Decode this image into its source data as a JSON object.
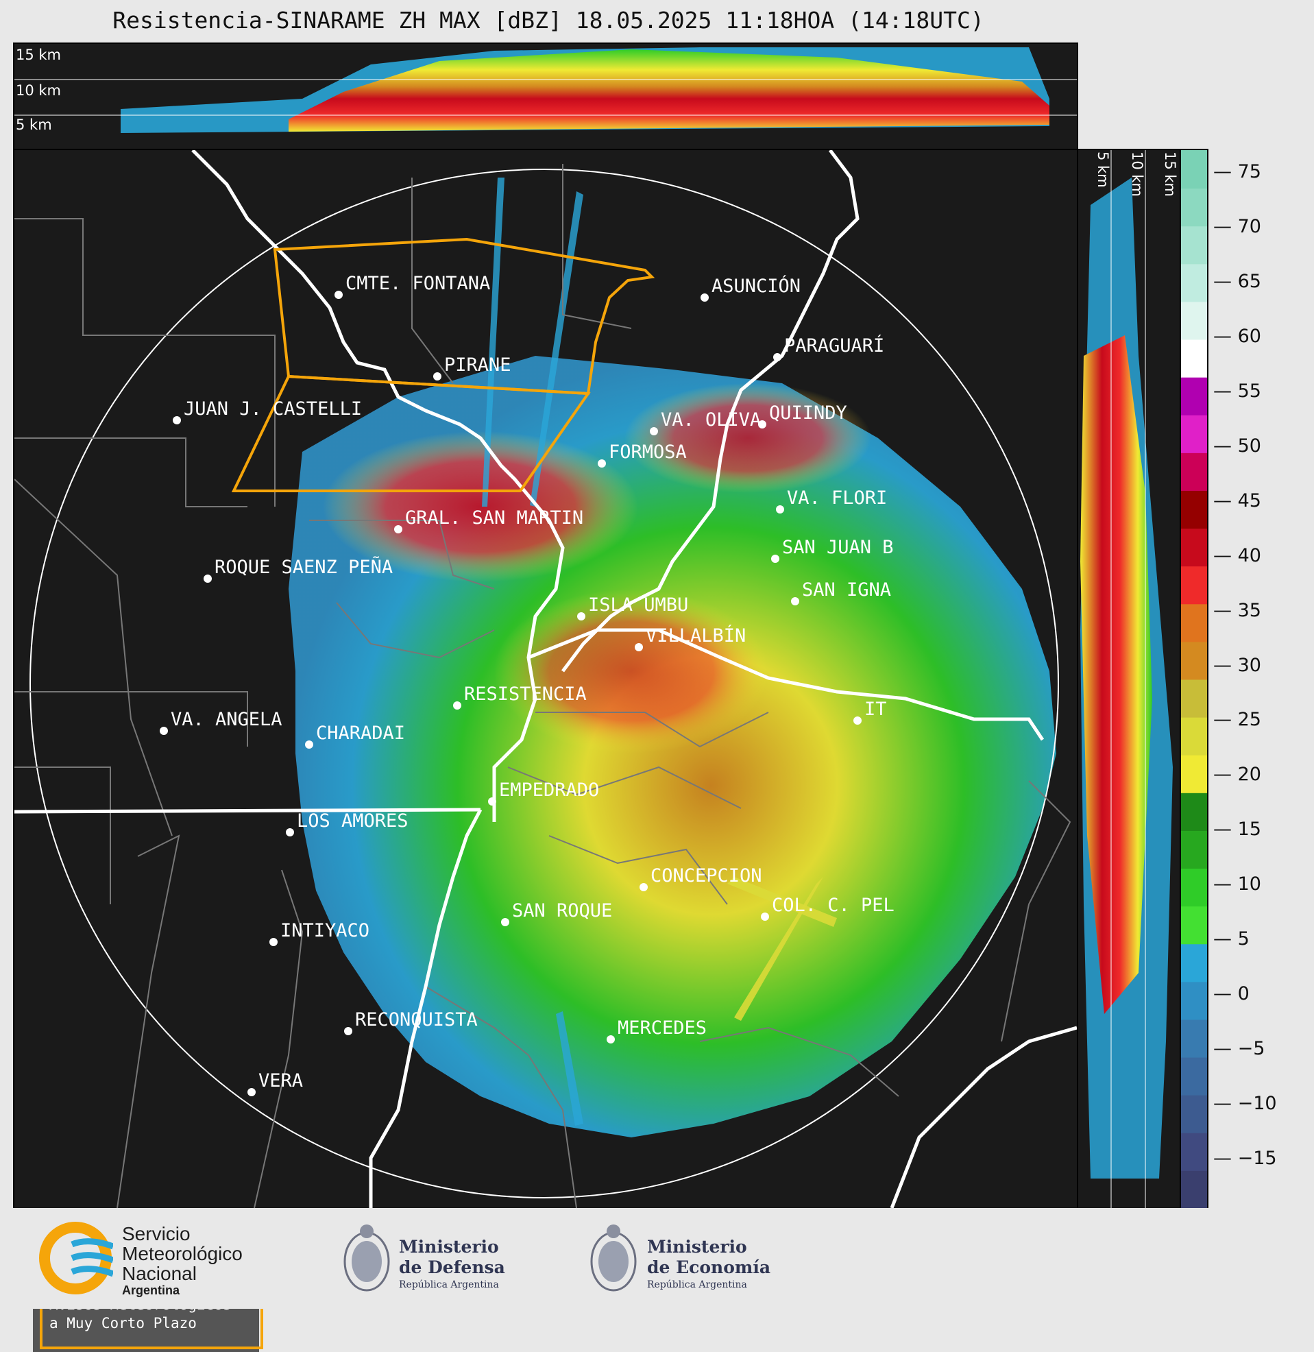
{
  "title": "Resistencia-SINARAME ZH MAX [dBZ] 18.05.2025 11:18HOA (14:18UTC)",
  "vertical_profile": {
    "height_labels": [
      "15 km",
      "10 km",
      "5 km"
    ]
  },
  "colorbar": {
    "unit": "dBZ",
    "ticks": [
      "75",
      "70",
      "65",
      "60",
      "55",
      "50",
      "45",
      "40",
      "35",
      "30",
      "25",
      "20",
      "15",
      "10",
      "5",
      "0",
      "−5",
      "−10",
      "−15"
    ],
    "colors": [
      "#3a3f6e",
      "#404a80",
      "#3d5b90",
      "#3b6aa0",
      "#387bb0",
      "#2f8fc4",
      "#2aa6d8",
      "#43e032",
      "#2fcc28",
      "#27a81f",
      "#1e8a18",
      "#f0ea34",
      "#dada38",
      "#c8bd38",
      "#d48a20",
      "#e0741e",
      "#ef2a2a",
      "#c70a1c",
      "#950000",
      "#cc0057",
      "#e020c8",
      "#b000b0",
      "#ffffff",
      "#dff5ee",
      "#c0ece0",
      "#a6e3d0",
      "#8cd9c0",
      "#7ad2b5"
    ]
  },
  "cities": [
    {
      "name": "CMTE. FONTANA"
    },
    {
      "name": "ASUNCIÓN"
    },
    {
      "name": "PARAGUARÍ"
    },
    {
      "name": "PIRANE"
    },
    {
      "name": "JUAN J. CASTELLI"
    },
    {
      "name": "VA. OLIVA"
    },
    {
      "name": "QUIINDY"
    },
    {
      "name": "FORMOSA"
    },
    {
      "name": "VA. FLORI"
    },
    {
      "name": "GRAL. SAN MARTIN"
    },
    {
      "name": "SAN JUAN B"
    },
    {
      "name": "ROQUE SAENZ PEÑA"
    },
    {
      "name": "SAN IGNA"
    },
    {
      "name": "ISLA UMBU"
    },
    {
      "name": "VILLALBÍN"
    },
    {
      "name": "RESISTENCIA"
    },
    {
      "name": "VA. ANGELA"
    },
    {
      "name": "CHARADAI"
    },
    {
      "name": "IT"
    },
    {
      "name": "EMPEDRADO"
    },
    {
      "name": "LOS AMORES"
    },
    {
      "name": "CONCEPCION"
    },
    {
      "name": "COL. C. PEL"
    },
    {
      "name": "SAN ROQUE"
    },
    {
      "name": "INTIYACO"
    },
    {
      "name": "RECONQUISTA"
    },
    {
      "name": "MERCEDES"
    },
    {
      "name": "VERA"
    }
  ],
  "notice": {
    "line1": "Avisos Meteorológicos",
    "line2": "a Muy Corto Plazo"
  },
  "footer": {
    "smn": {
      "line1": "Servicio",
      "line2": "Meteorológico",
      "line3": "Nacional",
      "line4": "Argentina"
    },
    "defensa": {
      "line1": "Ministerio",
      "line2": "de Defensa",
      "line3": "República Argentina"
    },
    "economia": {
      "line1": "Ministerio",
      "line2": "de Economía",
      "line3": "República Argentina"
    }
  }
}
